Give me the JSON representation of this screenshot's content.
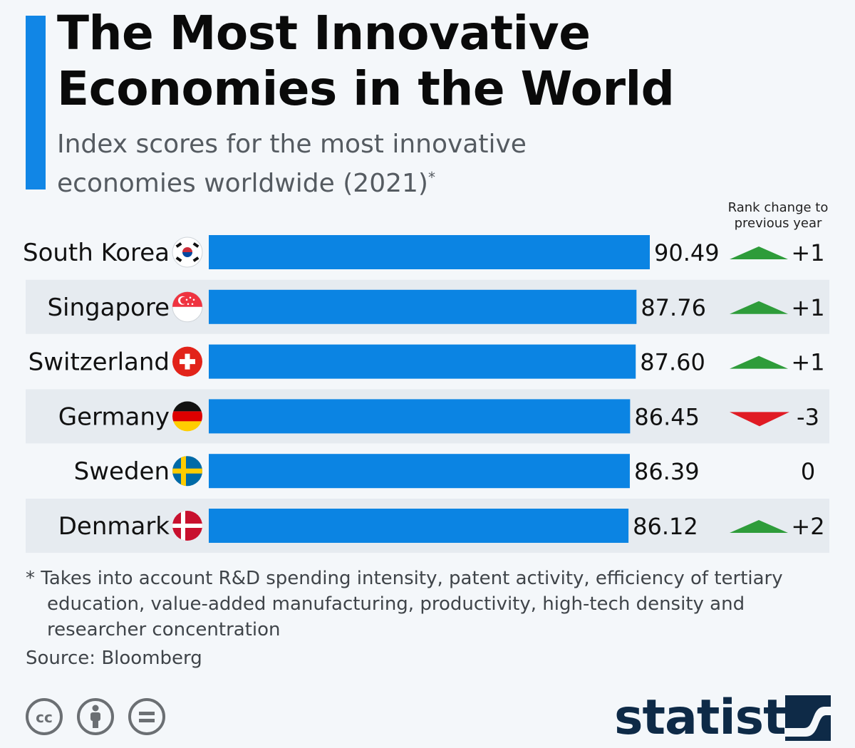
{
  "header": {
    "title_line1": "The Most Innovative",
    "title_line2": "Economies in the World",
    "subtitle_line1": "Index scores for the most innovative",
    "subtitle_line2": "economies worldwide (2021)",
    "subtitle_mark": "*",
    "rank_header_line1": "Rank change to",
    "rank_header_line2": "previous year"
  },
  "colors": {
    "accent": "#1186e6",
    "bar": "#0b84e3",
    "up": "#2e9c3a",
    "down": "#e01b24",
    "row_shade": "#e6ebf0"
  },
  "chart_data": {
    "type": "bar",
    "orientation": "horizontal",
    "title": "The Most Innovative Economies in the World",
    "subtitle": "Index scores for the most innovative economies worldwide (2021)*",
    "categories": [
      "South Korea",
      "Singapore",
      "Switzerland",
      "Germany",
      "Sweden",
      "Denmark"
    ],
    "values": [
      90.49,
      87.76,
      87.6,
      86.45,
      86.39,
      86.12
    ],
    "value_labels": [
      "90.49",
      "87.76",
      "87.60",
      "86.45",
      "86.39",
      "86.12"
    ],
    "rank_change": [
      "+1",
      "+1",
      "+1",
      "-3",
      "0",
      "+2"
    ],
    "rank_direction": [
      "up",
      "up",
      "up",
      "down",
      "none",
      "up"
    ],
    "flags": [
      "south-korea-flag-icon",
      "singapore-flag-icon",
      "switzerland-flag-icon",
      "germany-flag-icon",
      "sweden-flag-icon",
      "denmark-flag-icon"
    ],
    "xlim": [
      0,
      90.49
    ],
    "grid": false
  },
  "footer": {
    "note_line1": "* Takes into account R&D spending intensity, patent activity, efficiency of tertiary",
    "note_line2": "education, value-added manufacturing, productivity, high-tech density and",
    "note_line3": "researcher concentration",
    "source": "Source: Bloomberg",
    "brand": "statista",
    "license_icons": [
      "creative-commons-icon",
      "attribution-icon",
      "no-derivatives-icon"
    ]
  }
}
